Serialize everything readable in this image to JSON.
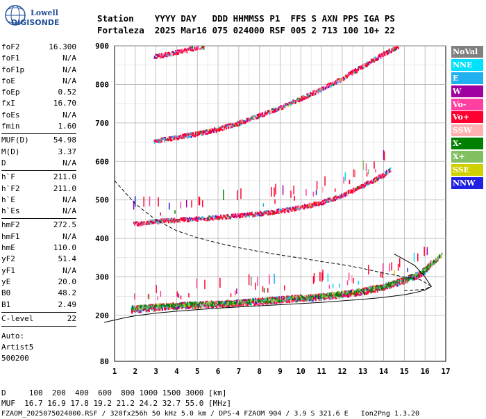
{
  "logo": {
    "line1": "Lowell",
    "line2": "DIGISONDE"
  },
  "header": {
    "line1": "Station    YYYY DAY   DDD HHMMSS P1  FFS S AXN PPS IGA PS",
    "line2": "Fortaleza  2025 Mar16 075 024000 RSF 005 2 713 100 10+ 22"
  },
  "params": {
    "group1": [
      {
        "label": "foF2",
        "value": "16.300"
      },
      {
        "label": "foF1",
        "value": "N/A"
      },
      {
        "label": "foF1p",
        "value": "N/A"
      },
      {
        "label": "foE",
        "value": "N/A"
      },
      {
        "label": "foEp",
        "value": "0.52"
      },
      {
        "label": "fxI",
        "value": "16.70"
      },
      {
        "label": "foEs",
        "value": "N/A"
      },
      {
        "label": "fmin",
        "value": "1.60"
      }
    ],
    "group2": [
      {
        "label": "MUF(D)",
        "value": "54.98"
      },
      {
        "label": "M(D)",
        "value": "3.37"
      },
      {
        "label": "D",
        "value": "N/A"
      }
    ],
    "group3": [
      {
        "label": "h`F",
        "value": "211.0"
      },
      {
        "label": "h`F2",
        "value": "211.0"
      },
      {
        "label": "h`E",
        "value": "N/A"
      },
      {
        "label": "h`Es",
        "value": "N/A"
      }
    ],
    "group4": [
      {
        "label": "hmF2",
        "value": "272.5"
      },
      {
        "label": "hmF1",
        "value": "N/A"
      },
      {
        "label": "hmE",
        "value": "110.0"
      },
      {
        "label": "yF2",
        "value": "51.4"
      },
      {
        "label": "yF1",
        "value": "N/A"
      },
      {
        "label": "yE",
        "value": "20.0"
      },
      {
        "label": "B0",
        "value": "48.2"
      },
      {
        "label": "B1",
        "value": "2.49"
      }
    ],
    "group5": [
      {
        "label": "C-level",
        "value": "22"
      }
    ],
    "auto_lines": [
      "Auto:",
      "Artist5",
      "500200"
    ]
  },
  "legend": [
    {
      "label": "NoVal",
      "color": "#808080"
    },
    {
      "label": "NNE",
      "color": "#00e0ff"
    },
    {
      "label": "E",
      "color": "#20b0f0"
    },
    {
      "label": "W",
      "color": "#a000a0"
    },
    {
      "label": "Vo-",
      "color": "#ff40a0"
    },
    {
      "label": "Vo+",
      "color": "#ff0030"
    },
    {
      "label": "SSW",
      "color": "#ffb0b0"
    },
    {
      "label": "X-",
      "color": "#008000"
    },
    {
      "label": "X+",
      "color": "#80c060"
    },
    {
      "label": "SSE",
      "color": "#d0d000"
    },
    {
      "label": "NNW",
      "color": "#2020e0"
    }
  ],
  "footer": {
    "line1": "D     100  200  400  600  800 1000 1500 3000 [km]",
    "line2": "MUF  16.7 16.9 17.8 19.2 21.2 24.2 32.7 55.0 [MHz]",
    "line3": "FZAOM_2025075024000.RSF / 320fx256h 50 kHz 5.0 km / DPS-4 FZAOM 904 / 3.9 S 321.6 E   Ion2Png 1.3.20"
  },
  "chart_data": {
    "type": "scatter",
    "title": "",
    "xlabel": "",
    "ylabel": "",
    "xlim": [
      1,
      17
    ],
    "ylim": [
      80,
      900
    ],
    "x_ticks": [
      1,
      2,
      3,
      4,
      5,
      6,
      7,
      8,
      9,
      10,
      11,
      12,
      13,
      14,
      15,
      16,
      17
    ],
    "y_ticks": [
      80,
      200,
      300,
      400,
      500,
      600,
      700,
      800,
      900
    ],
    "grid": true,
    "traces": [
      {
        "name": "F2 O-trace (1st hop)",
        "x": [
          1.8,
          2.5,
          3.0,
          3.5,
          4.0,
          4.5,
          5.0,
          5.5,
          6.0,
          6.5,
          7.0,
          7.5,
          8.0,
          8.5,
          9.0,
          9.5,
          10.0,
          10.5,
          11.0,
          11.5,
          12.0,
          12.5,
          13.0,
          13.5,
          14.0,
          14.5,
          15.0,
          15.5,
          16.0,
          16.3
        ],
        "y": [
          218,
          222,
          225,
          227,
          228,
          230,
          231,
          232,
          233,
          234,
          236,
          238,
          240,
          242,
          244,
          246,
          248,
          250,
          252,
          255,
          258,
          262,
          266,
          272,
          278,
          286,
          295,
          305,
          320,
          340
        ]
      },
      {
        "name": "2nd hop",
        "x": [
          1.9,
          2.5,
          3.0,
          3.5,
          4.0,
          4.5,
          5.0,
          5.5,
          6.0,
          6.5,
          7.0,
          7.5,
          8.0,
          8.5,
          9.0,
          9.5,
          10.0,
          10.5,
          11.0,
          11.5,
          12.0,
          12.5,
          13.0,
          13.5,
          14.0,
          14.3
        ],
        "y": [
          440,
          443,
          446,
          448,
          450,
          452,
          453,
          455,
          457,
          459,
          461,
          464,
          467,
          470,
          474,
          478,
          483,
          489,
          496,
          505,
          515,
          527,
          540,
          553,
          568,
          580
        ]
      },
      {
        "name": "3rd hop",
        "x": [
          2.9,
          3.5,
          4.0,
          4.5,
          5.0,
          5.5,
          6.0,
          6.5,
          7.0,
          7.5,
          8.0,
          8.5,
          9.0,
          9.5,
          10.0,
          10.5,
          11.0,
          11.5,
          12.0,
          12.5,
          13.0,
          13.5,
          14.0,
          14.5,
          15.0
        ],
        "y": [
          655,
          660,
          665,
          670,
          674,
          680,
          686,
          694,
          702,
          712,
          722,
          732,
          742,
          754,
          766,
          778,
          790,
          804,
          818,
          834,
          850,
          866,
          882,
          896,
          910
        ]
      },
      {
        "name": "4th hop",
        "x": [
          2.9,
          3.5,
          4.0,
          4.5,
          5.0,
          5.3
        ],
        "y": [
          874,
          880,
          886,
          892,
          898,
          900
        ]
      },
      {
        "name": "F2 X-trace",
        "x": [
          1.8,
          2.5,
          3.0,
          3.5,
          4.0,
          4.5,
          5.0,
          5.5,
          6.0,
          6.5,
          7.0,
          7.5,
          8.0,
          8.5,
          9.0,
          9.5,
          10.0,
          10.5,
          11.0,
          11.5,
          12.0,
          12.5,
          13.0,
          13.5,
          14.0,
          14.5,
          15.0,
          15.5,
          16.0,
          16.5,
          16.8
        ],
        "y": [
          222,
          224,
          226,
          228,
          229,
          231,
          232,
          233,
          234,
          235,
          237,
          239,
          241,
          243,
          245,
          247,
          249,
          251,
          253,
          256,
          259,
          263,
          267,
          273,
          279,
          287,
          296,
          306,
          322,
          345,
          360
        ]
      }
    ],
    "profile": {
      "name": "Electron density profile",
      "x": [
        0.5,
        1.0,
        1.5,
        2.0,
        3.0,
        4.0,
        5.0,
        6.0,
        7.0,
        8.0,
        9.0,
        10.0,
        11.0,
        12.0,
        13.0,
        14.0,
        15.0,
        15.5,
        16.0,
        16.3,
        16.0,
        15.5,
        14.5
      ],
      "y": [
        182,
        188,
        194,
        199,
        206,
        211,
        215,
        219,
        222,
        225,
        228,
        231,
        234,
        238,
        242,
        247,
        254,
        259,
        266,
        275,
        300,
        330,
        360
      ]
    },
    "profile_topside": {
      "name": "Profile (model topside)",
      "x": [
        1.0,
        1.5,
        2.0,
        3.0,
        4.0,
        5.0,
        6.0,
        7.0,
        8.0,
        9.0,
        10.0,
        11.0,
        12.0,
        13.0,
        14.0,
        15.0,
        15.8,
        16.3,
        16.0,
        15.0
      ],
      "y": [
        550,
        520,
        490,
        448,
        420,
        402,
        388,
        376,
        366,
        357,
        349,
        340,
        332,
        322,
        310,
        300,
        292,
        276,
        268,
        264
      ]
    }
  }
}
